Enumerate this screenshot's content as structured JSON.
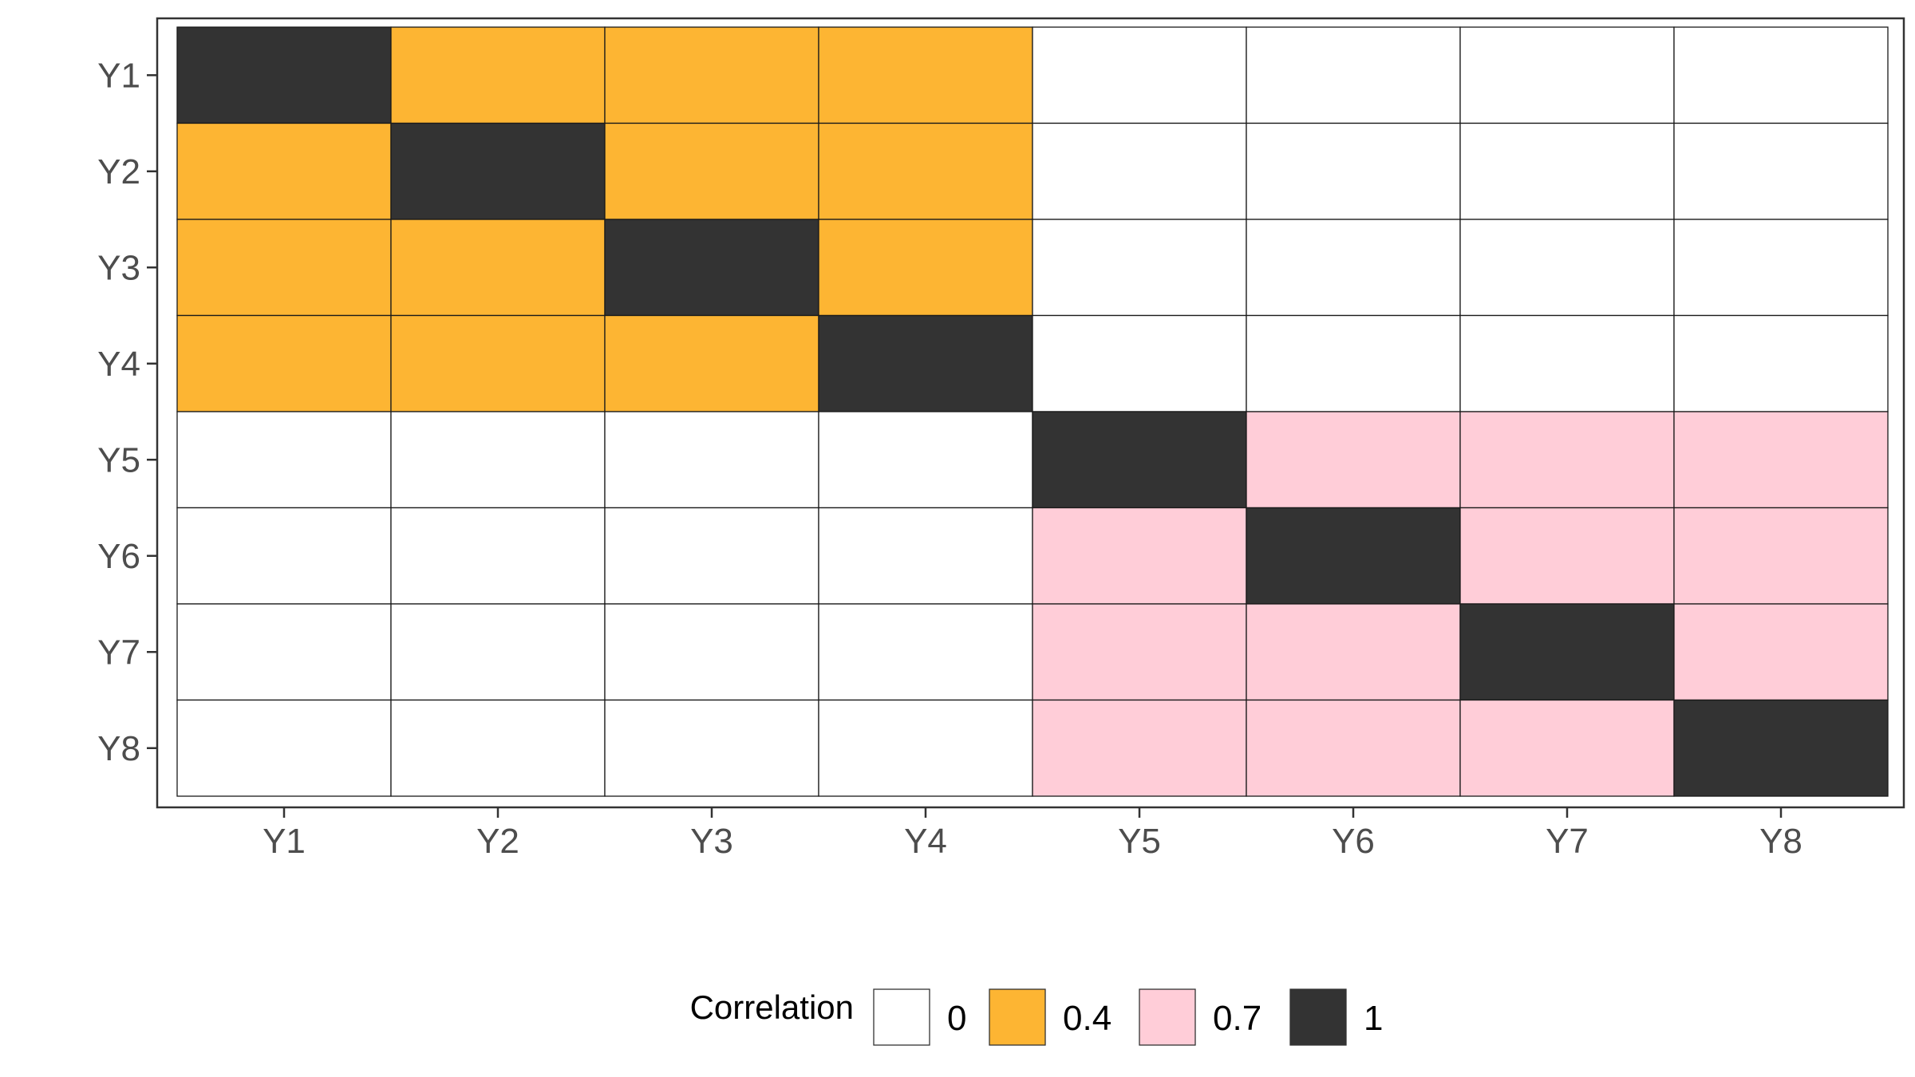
{
  "chart_data": {
    "type": "heatmap",
    "x_categories": [
      "Y1",
      "Y2",
      "Y3",
      "Y4",
      "Y5",
      "Y6",
      "Y7",
      "Y8"
    ],
    "y_categories": [
      "Y1",
      "Y2",
      "Y3",
      "Y4",
      "Y5",
      "Y6",
      "Y7",
      "Y8"
    ],
    "values": [
      [
        1,
        0.4,
        0.4,
        0.4,
        0,
        0,
        0,
        0
      ],
      [
        0.4,
        1,
        0.4,
        0.4,
        0,
        0,
        0,
        0
      ],
      [
        0.4,
        0.4,
        1,
        0.4,
        0,
        0,
        0,
        0
      ],
      [
        0.4,
        0.4,
        0.4,
        1,
        0,
        0,
        0,
        0
      ],
      [
        0,
        0,
        0,
        0,
        1,
        0.7,
        0.7,
        0.7
      ],
      [
        0,
        0,
        0,
        0,
        0.7,
        1,
        0.7,
        0.7
      ],
      [
        0,
        0,
        0,
        0,
        0.7,
        0.7,
        1,
        0.7
      ],
      [
        0,
        0,
        0,
        0,
        0.7,
        0.7,
        0.7,
        1
      ]
    ],
    "legend": {
      "title": "Correlation",
      "position": "bottom",
      "levels": [
        {
          "label": "0",
          "value": 0,
          "color": "#ffffff"
        },
        {
          "label": "0.4",
          "value": 0.4,
          "color": "#fdb533"
        },
        {
          "label": "0.7",
          "value": 0.7,
          "color": "#ffcdd8"
        },
        {
          "label": "1",
          "value": 1,
          "color": "#333333"
        }
      ]
    },
    "grid": false
  }
}
